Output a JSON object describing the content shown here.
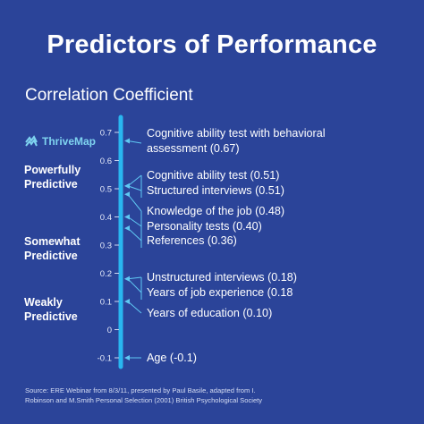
{
  "title": "Predictors of Performance",
  "brand": {
    "name": "ThriveMap",
    "icon": "thrivemap-logo-icon",
    "color": "#7fd4f0"
  },
  "bands": [
    {
      "line1": "Powerfully",
      "line2": "Predictive"
    },
    {
      "line1": "Somewhat",
      "line2": "Predictive"
    },
    {
      "line1": "Weakly",
      "line2": "Predictive"
    }
  ],
  "source": {
    "line1": "Source: ERE Webinar from 8/3/11, presented by Paul Basile, adapted from I.",
    "line2": "Robinson and M.Smith Personal Selection (2001) British Psychological Society"
  },
  "colors": {
    "background": "#2b4499",
    "axis": "#29b6f0",
    "text": "#ffffff"
  },
  "chart_data": {
    "type": "annotated-scale",
    "ylabel": "Correlation Coefficient",
    "ylim": [
      -0.12,
      0.72
    ],
    "ticks": [
      0.7,
      0.6,
      0.5,
      0.4,
      0.3,
      0.2,
      0.1,
      0,
      -0.1
    ],
    "tick_labels": [
      "0.7",
      "0.6",
      "0.5",
      "0.4",
      "0.3",
      "0.2",
      "0.1",
      "0",
      "-0.1"
    ],
    "predictors": [
      {
        "text": "Cognitive ability test with behavioral",
        "text2": "assessment (0.67)",
        "value": 0.67
      },
      {
        "text": "Cognitive ability test (0.51)",
        "value": 0.51
      },
      {
        "text": "Structured interviews (0.51)",
        "value": 0.51
      },
      {
        "text": "Knowledge of the job (0.48)",
        "value": 0.48
      },
      {
        "text": "Personality tests (0.40)",
        "value": 0.4
      },
      {
        "text": "References (0.36)",
        "value": 0.36
      },
      {
        "text": "Unstructured interviews (0.18)",
        "value": 0.18
      },
      {
        "text": "Years of job experience (0.18",
        "value": 0.18
      },
      {
        "text": "Years of education (0.10)",
        "value": 0.1
      },
      {
        "text": "Age (-0.1)",
        "value": -0.1
      }
    ]
  }
}
